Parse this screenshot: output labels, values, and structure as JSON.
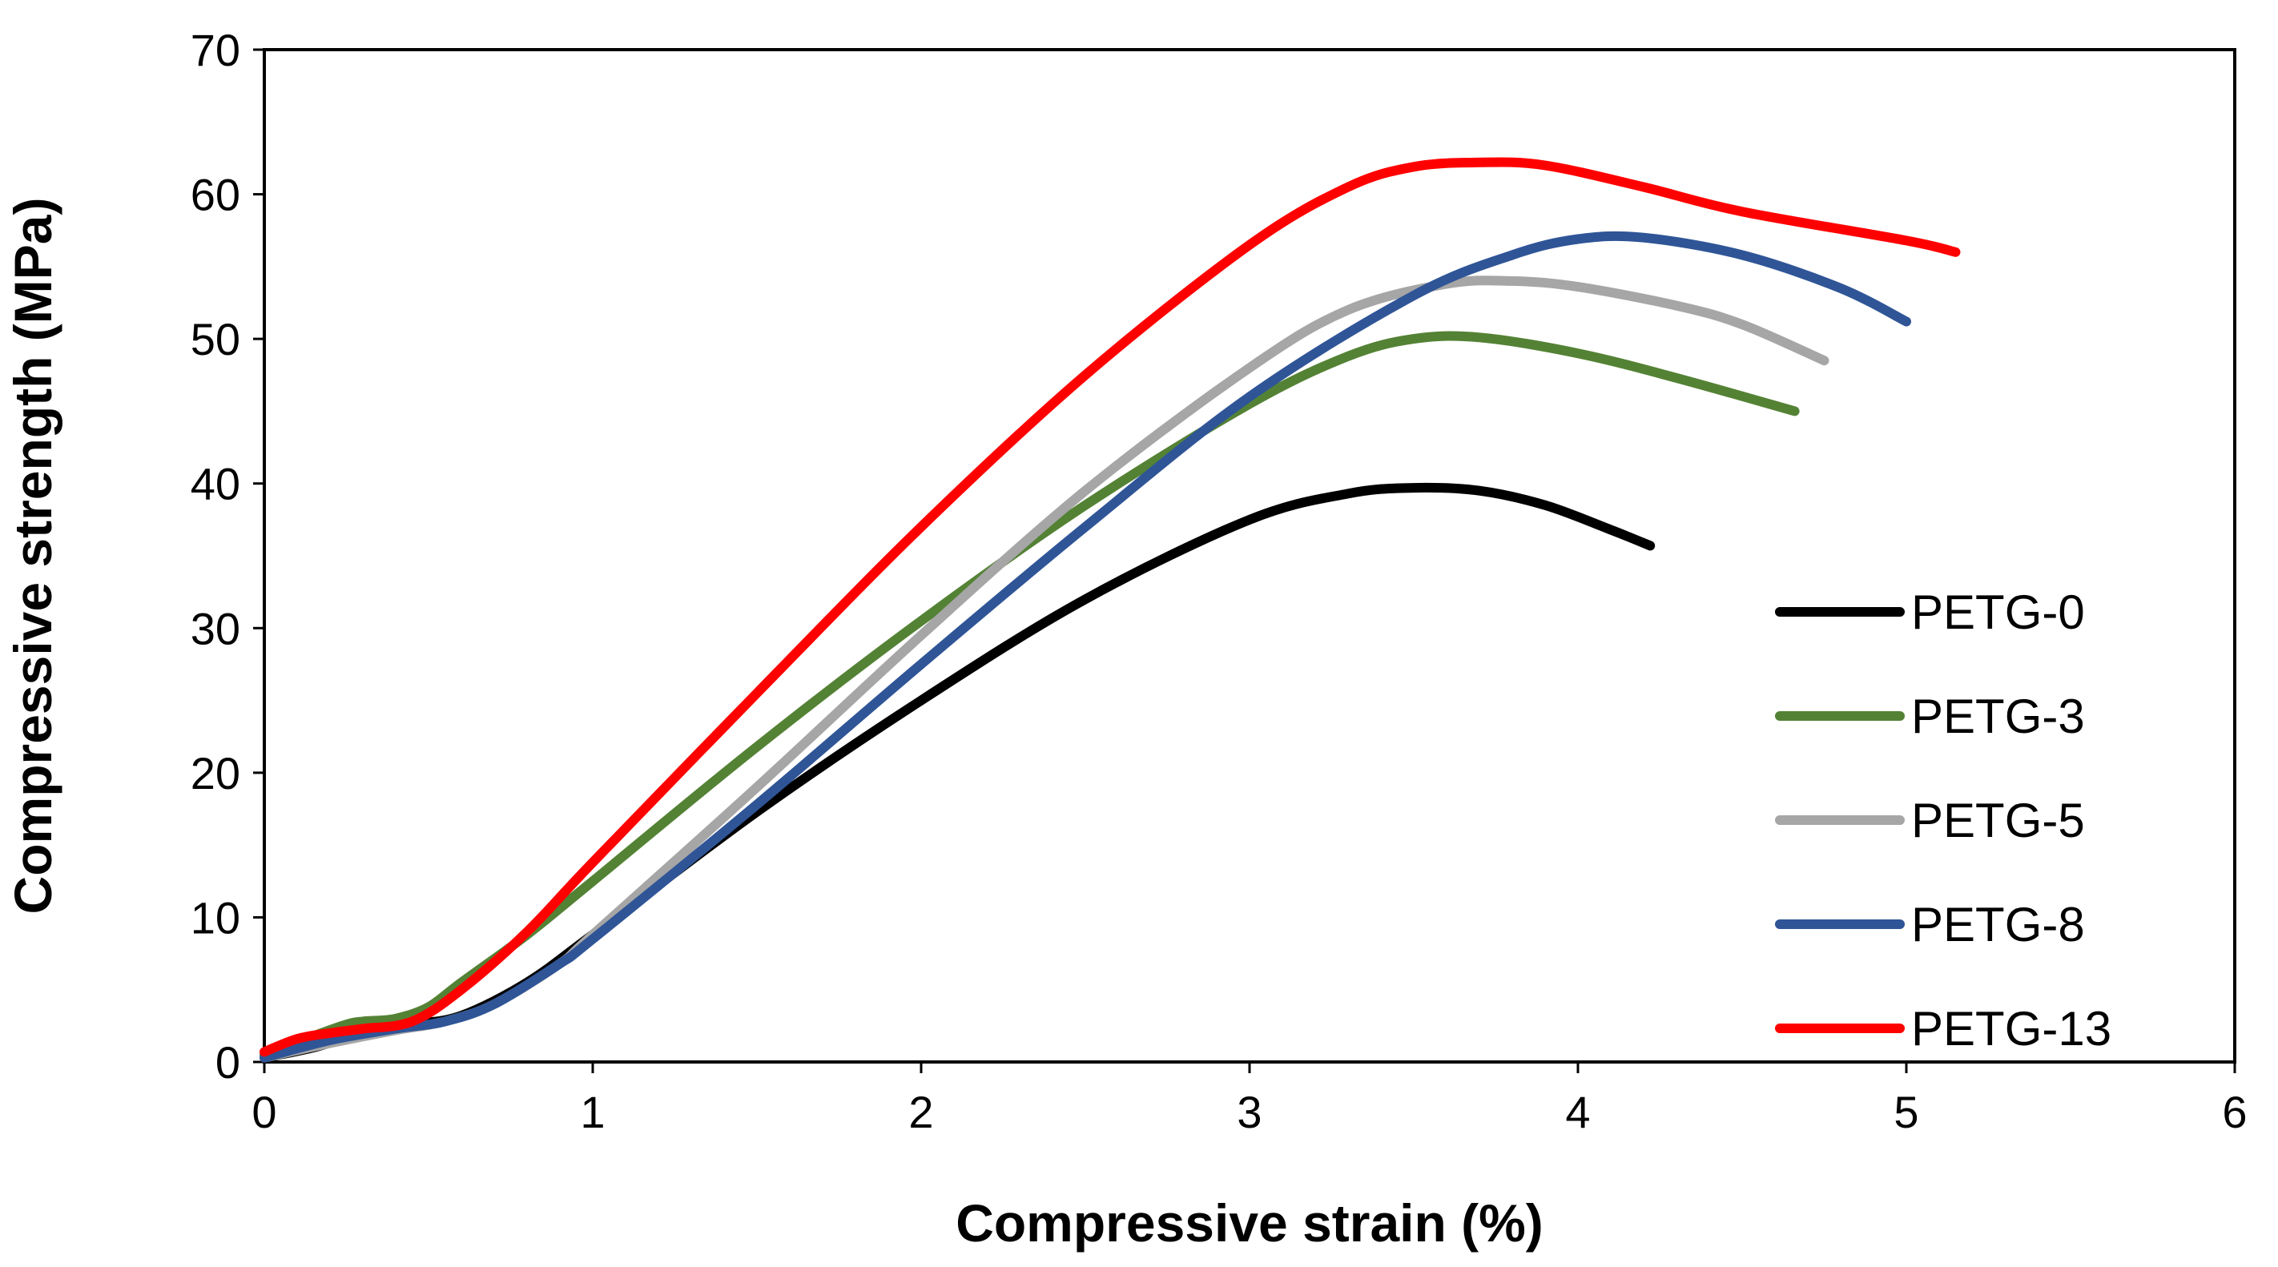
{
  "chart_data": {
    "type": "line",
    "title": "",
    "xlabel": "Compressive strain (%)",
    "ylabel": "Compressive strength (MPa)",
    "xlim": [
      0,
      6
    ],
    "ylim": [
      0,
      70
    ],
    "xticks": [
      0,
      1,
      2,
      3,
      4,
      5,
      6
    ],
    "yticks": [
      0,
      10,
      20,
      30,
      40,
      50,
      60,
      70
    ],
    "grid": false,
    "legend_position": "right",
    "series": [
      {
        "name": "PETG-0",
        "color": "#000000",
        "x": [
          0,
          0.15,
          0.3,
          0.45,
          0.6,
          0.8,
          1.0,
          1.5,
          2.0,
          2.5,
          3.0,
          3.3,
          3.5,
          3.7,
          3.9,
          4.1,
          4.22
        ],
        "y": [
          0.3,
          1.0,
          2.0,
          2.6,
          3.2,
          5.5,
          8.8,
          17.3,
          25.0,
          32.0,
          37.5,
          39.3,
          39.7,
          39.5,
          38.5,
          36.8,
          35.7
        ]
      },
      {
        "name": "PETG-3",
        "color": "#548235",
        "x": [
          0,
          0.15,
          0.25,
          0.3,
          0.4,
          0.5,
          0.6,
          0.8,
          1.0,
          1.5,
          2.0,
          2.5,
          3.0,
          3.3,
          3.5,
          3.7,
          4.0,
          4.3,
          4.66
        ],
        "y": [
          0.5,
          1.8,
          2.6,
          2.8,
          3.0,
          3.8,
          5.5,
          8.8,
          12.5,
          21.8,
          30.5,
          38.5,
          45.5,
          48.8,
          50.0,
          50.1,
          49.0,
          47.3,
          45.0
        ]
      },
      {
        "name": "PETG-5",
        "color": "#a6a6a6",
        "x": [
          0,
          0.2,
          0.4,
          0.55,
          0.7,
          0.9,
          1.0,
          1.5,
          2.0,
          2.5,
          3.0,
          3.3,
          3.6,
          3.8,
          4.0,
          4.3,
          4.5,
          4.75
        ],
        "y": [
          0.3,
          1.3,
          2.2,
          2.8,
          4.0,
          6.8,
          8.8,
          19.0,
          29.5,
          39.5,
          48.0,
          52.0,
          53.8,
          54.0,
          53.6,
          52.3,
          51.0,
          48.5
        ]
      },
      {
        "name": "PETG-8",
        "color": "#2f5597",
        "x": [
          0,
          0.2,
          0.4,
          0.55,
          0.7,
          0.9,
          1.0,
          1.5,
          2.0,
          2.5,
          3.0,
          3.5,
          3.8,
          4.0,
          4.2,
          4.5,
          4.8,
          5.0
        ],
        "y": [
          0.3,
          1.5,
          2.3,
          2.8,
          4.0,
          6.8,
          8.5,
          17.8,
          27.5,
          37.0,
          46.0,
          53.0,
          55.8,
          56.9,
          57.0,
          55.8,
          53.5,
          51.2
        ]
      },
      {
        "name": "PETG-13",
        "color": "#ff0000",
        "x": [
          0,
          0.1,
          0.2,
          0.3,
          0.45,
          0.6,
          0.8,
          1.0,
          1.5,
          2.0,
          2.5,
          3.0,
          3.3,
          3.5,
          3.7,
          3.9,
          4.2,
          4.5,
          5.0,
          5.15
        ],
        "y": [
          0.7,
          1.6,
          2.0,
          2.3,
          2.8,
          5.0,
          9.0,
          13.8,
          25.5,
          37.0,
          47.5,
          56.5,
          60.5,
          61.9,
          62.2,
          62.0,
          60.5,
          58.8,
          56.8,
          56.0
        ]
      }
    ]
  }
}
